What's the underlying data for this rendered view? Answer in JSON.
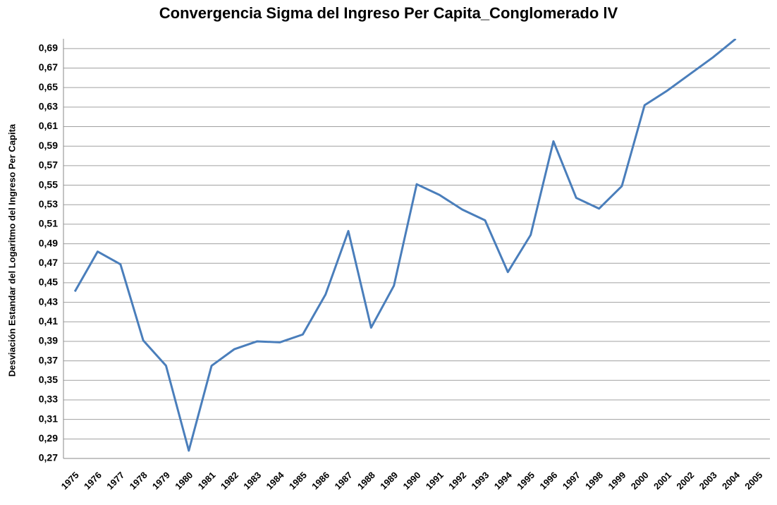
{
  "chart_data": {
    "type": "line",
    "title": "Convergencia Sigma   del Ingreso Per Capita_Conglomerado lV",
    "y_label": "Desviación Estandar del Logaritmo del Ingreso Per Capita",
    "categories": [
      "1975",
      "1976",
      "1977",
      "1978",
      "1979",
      "1980",
      "1981",
      "1982",
      "1983",
      "1984",
      "1985",
      "1986",
      "1987",
      "1988",
      "1989",
      "1990",
      "1991",
      "1992",
      "1993",
      "1994",
      "1995",
      "1996",
      "1997",
      "1998",
      "1999",
      "2000",
      "2001",
      "2002",
      "2003",
      "2004",
      "2005"
    ],
    "series": [
      {
        "name": "Sigma",
        "color": "#4a7ebb",
        "values": [
          0.441,
          0.482,
          0.469,
          0.391,
          0.365,
          0.278,
          0.365,
          0.382,
          0.39,
          0.389,
          0.397,
          0.438,
          0.503,
          0.404,
          0.447,
          0.551,
          0.54,
          0.525,
          0.514,
          0.461,
          0.499,
          0.595,
          0.537,
          0.526,
          0.549,
          0.632,
          0.647,
          0.664,
          0.681,
          0.7,
          null
        ]
      }
    ],
    "ylim": [
      0.27,
      0.7
    ],
    "yticks": [
      {
        "value": 0.27,
        "label": "0,27"
      },
      {
        "value": 0.29,
        "label": "0,29"
      },
      {
        "value": 0.31,
        "label": "0,31"
      },
      {
        "value": 0.33,
        "label": "0,33"
      },
      {
        "value": 0.35,
        "label": "0,35"
      },
      {
        "value": 0.37,
        "label": "0,37"
      },
      {
        "value": 0.39,
        "label": "0,39"
      },
      {
        "value": 0.41,
        "label": "0,41"
      },
      {
        "value": 0.43,
        "label": "0,43"
      },
      {
        "value": 0.45,
        "label": "0,45"
      },
      {
        "value": 0.47,
        "label": "0,47"
      },
      {
        "value": 0.49,
        "label": "0,49"
      },
      {
        "value": 0.51,
        "label": "0,51"
      },
      {
        "value": 0.53,
        "label": "0,53"
      },
      {
        "value": 0.55,
        "label": "0,55"
      },
      {
        "value": 0.57,
        "label": "0,57"
      },
      {
        "value": 0.59,
        "label": "0,59"
      },
      {
        "value": 0.61,
        "label": "0,61"
      },
      {
        "value": 0.63,
        "label": "0,63"
      },
      {
        "value": 0.65,
        "label": "0,65"
      },
      {
        "value": 0.67,
        "label": "0,67"
      },
      {
        "value": 0.69,
        "label": "0,69"
      }
    ],
    "grid": true
  }
}
